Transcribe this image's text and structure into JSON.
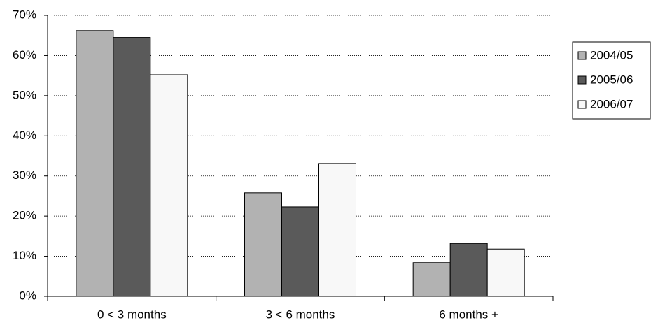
{
  "chart_data": {
    "type": "bar",
    "categories": [
      "0 < 3 months",
      "3 < 6 months",
      "6 months +"
    ],
    "series": [
      {
        "name": "2004/05",
        "color": "#b2b2b2",
        "values": [
          66.2,
          25.8,
          8.4
        ]
      },
      {
        "name": "2005/06",
        "color": "#5a5a5a",
        "values": [
          64.5,
          22.3,
          13.2
        ]
      },
      {
        "name": "2006/07",
        "color": "#f8f8f8",
        "values": [
          55.2,
          33.1,
          11.8
        ]
      }
    ],
    "ylim": [
      0,
      70
    ],
    "yticks": [
      {
        "value": 0,
        "label": "0%"
      },
      {
        "value": 10,
        "label": "10%"
      },
      {
        "value": 20,
        "label": "20%"
      },
      {
        "value": 30,
        "label": "30%"
      },
      {
        "value": 40,
        "label": "40%"
      },
      {
        "value": 50,
        "label": "50%"
      },
      {
        "value": 60,
        "label": "60%"
      },
      {
        "value": 70,
        "label": "70%"
      }
    ],
    "grid": true,
    "legend": "right"
  }
}
